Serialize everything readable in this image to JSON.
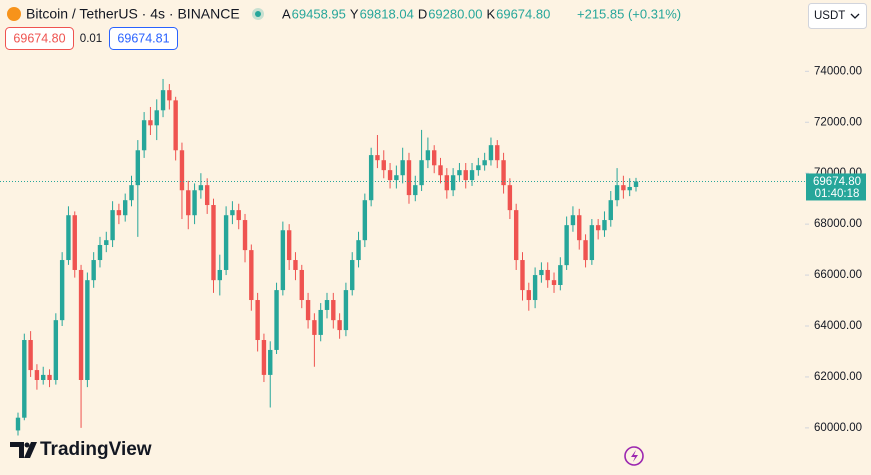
{
  "toolbar": {
    "symbol": "Bitcoin / TetherUS · 4s · BINANCE",
    "ohlc": [
      {
        "key": "A",
        "value": "69458.95"
      },
      {
        "key": "Y",
        "value": "69818.04"
      },
      {
        "key": "D",
        "value": "69280.00"
      },
      {
        "key": "K",
        "value": "69674.80"
      }
    ],
    "change": "+215.85 (+0.31%)",
    "sell_price": "69674.80",
    "spread": "0.01",
    "buy_price": "69674.81",
    "currency": "USDT"
  },
  "last_price": {
    "label": "69674.80",
    "countdown": "01:40:18"
  },
  "brand": "TradingView",
  "chart_data": {
    "type": "candlestick",
    "up_color": "#26a69a",
    "down_color": "#ef5350",
    "ylim": [
      58150,
      76800
    ],
    "yticks": [
      {
        "value": 60000,
        "label": "60000.00"
      },
      {
        "value": 62000,
        "label": "62000.00"
      },
      {
        "value": 64000,
        "label": "64000.00"
      },
      {
        "value": 66000,
        "label": "66000.00"
      },
      {
        "value": 68000,
        "label": "68000.00"
      },
      {
        "value": 70000,
        "label": "70000.00"
      },
      {
        "value": 72000,
        "label": "72000.00"
      },
      {
        "value": 74000,
        "label": "74000.00"
      }
    ],
    "open": [
      59900,
      60400,
      63450,
      62270,
      61880,
      62080,
      61880,
      64230,
      66590,
      68350,
      66200,
      61880,
      65800,
      66590,
      67180,
      67370,
      68550,
      68350,
      68940,
      69530,
      70900,
      72080,
      71880,
      72470,
      73260,
      72860,
      70900,
      69330,
      68350,
      69330,
      69530,
      68750,
      65800,
      66200,
      68350,
      68550,
      68160,
      66980,
      65020,
      63450,
      62080,
      63060,
      65410,
      67760,
      66590,
      66200,
      65020,
      64230,
      63650,
      64630,
      65020,
      64230,
      63840,
      65410,
      66590,
      67370,
      68940,
      70710,
      70510,
      70120,
      69730,
      69920,
      70510,
      69140,
      69530,
      70510,
      70900,
      70310,
      69920,
      69330,
      69920,
      70120,
      69730,
      70120,
      70310,
      70510,
      71100,
      70510,
      69530,
      68550,
      66590,
      65410,
      65020,
      66000,
      66200,
      65800,
      65610,
      66390,
      67960,
      68350,
      67370,
      66590,
      67960,
      67760,
      68160,
      68940,
      69530,
      69330,
      69458.95
    ],
    "high": [
      60600,
      63700,
      63800,
      62500,
      62400,
      62300,
      64500,
      66900,
      68700,
      68500,
      66400,
      66100,
      66900,
      67500,
      67700,
      68900,
      68800,
      69200,
      69900,
      71300,
      72400,
      72600,
      72900,
      73700,
      73500,
      73000,
      71200,
      69700,
      69600,
      70000,
      69800,
      69000,
      66800,
      68700,
      68900,
      68800,
      68400,
      67200,
      65300,
      63700,
      63400,
      65700,
      68100,
      68000,
      66900,
      66400,
      65300,
      64500,
      64900,
      65300,
      65300,
      64500,
      65700,
      66900,
      67700,
      69200,
      71000,
      71500,
      70900,
      70400,
      70300,
      71000,
      70800,
      69900,
      71700,
      71400,
      71100,
      70600,
      70200,
      70200,
      70400,
      70400,
      70400,
      70600,
      70800,
      71400,
      71300,
      70800,
      69800,
      68800,
      66900,
      65700,
      66300,
      66500,
      66500,
      66100,
      66700,
      68300,
      68700,
      68600,
      67600,
      68200,
      68200,
      68500,
      69300,
      70200,
      69900,
      69800,
      69818.04
    ],
    "low": [
      59700,
      60300,
      62000,
      61500,
      61700,
      61600,
      61700,
      64000,
      66400,
      65900,
      60000,
      61600,
      65500,
      66300,
      66900,
      67100,
      68000,
      68100,
      68700,
      67500,
      70600,
      71500,
      71300,
      72200,
      72500,
      70500,
      68200,
      67800,
      68000,
      69000,
      68400,
      65300,
      65200,
      66000,
      68000,
      67800,
      66500,
      64600,
      63000,
      61800,
      60800,
      62900,
      65200,
      66200,
      65800,
      64700,
      63900,
      62400,
      63400,
      64300,
      63900,
      63500,
      63600,
      65200,
      66300,
      67100,
      68700,
      70200,
      69800,
      69400,
      69400,
      69600,
      68800,
      68900,
      69300,
      70200,
      70000,
      69600,
      69000,
      69100,
      69700,
      69400,
      69500,
      69900,
      70100,
      70300,
      70200,
      69200,
      68200,
      66200,
      65000,
      64600,
      64700,
      65700,
      65500,
      65300,
      65400,
      66200,
      67700,
      67000,
      66300,
      66400,
      67400,
      67500,
      67900,
      68700,
      69000,
      69100,
      69280
    ],
    "close": [
      60400,
      63450,
      62270,
      61880,
      62080,
      61880,
      64230,
      66590,
      68350,
      66200,
      61880,
      65800,
      66590,
      67180,
      67370,
      68550,
      68350,
      68940,
      69530,
      70900,
      72080,
      71880,
      72470,
      73260,
      72860,
      70900,
      69330,
      68350,
      69330,
      69530,
      68750,
      65800,
      66200,
      68350,
      68550,
      68160,
      66980,
      65020,
      63450,
      62080,
      63060,
      65410,
      67760,
      66590,
      66200,
      65020,
      64230,
      63650,
      64630,
      65020,
      64230,
      63840,
      65410,
      66590,
      67370,
      68940,
      70710,
      70510,
      70120,
      69730,
      69920,
      70510,
      69140,
      69530,
      70510,
      70900,
      70310,
      69920,
      69330,
      69920,
      70120,
      69730,
      70120,
      70310,
      70510,
      71100,
      70510,
      69530,
      68550,
      66590,
      65410,
      65020,
      66000,
      66200,
      65800,
      65610,
      66390,
      67960,
      68350,
      67370,
      66590,
      67960,
      67760,
      68160,
      68940,
      69530,
      69330,
      69458.95,
      69674.8
    ]
  }
}
